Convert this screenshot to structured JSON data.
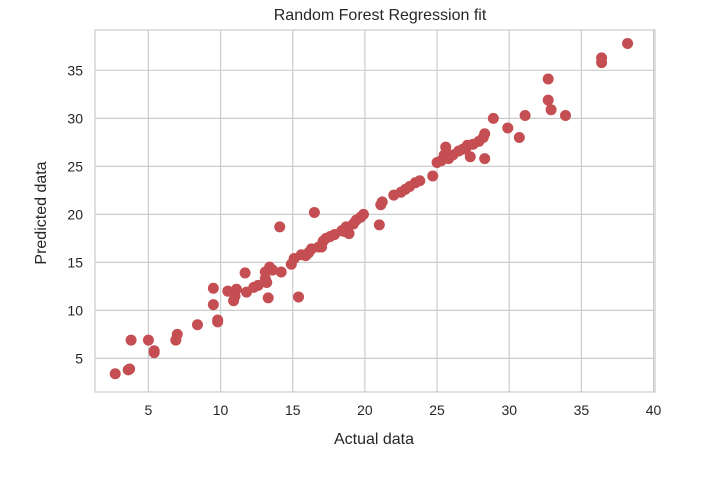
{
  "chart_data": {
    "type": "scatter",
    "title": "Random Forest Regression fit",
    "xlabel": "Actual data",
    "ylabel": "Predicted data",
    "xlim": [
      1.3,
      40.1
    ],
    "ylim": [
      1.5,
      39.2
    ],
    "x_ticks": [
      5,
      10,
      15,
      20,
      25,
      30,
      35,
      40
    ],
    "y_ticks": [
      5,
      10,
      15,
      20,
      25,
      30,
      35
    ],
    "grid": true,
    "point_color": "#c44e52",
    "grid_color": "#cccccc",
    "points": [
      [
        2.7,
        3.4
      ],
      [
        3.6,
        3.8
      ],
      [
        3.7,
        3.9
      ],
      [
        3.8,
        6.9
      ],
      [
        5.0,
        6.9
      ],
      [
        5.4,
        5.8
      ],
      [
        5.4,
        5.6
      ],
      [
        6.9,
        6.9
      ],
      [
        7.0,
        7.5
      ],
      [
        8.4,
        8.5
      ],
      [
        9.5,
        12.3
      ],
      [
        9.5,
        10.6
      ],
      [
        9.8,
        8.8
      ],
      [
        9.8,
        9.0
      ],
      [
        10.5,
        12.0
      ],
      [
        10.9,
        11.0
      ],
      [
        11.0,
        11.5
      ],
      [
        11.1,
        12.2
      ],
      [
        11.7,
        13.9
      ],
      [
        11.8,
        11.9
      ],
      [
        12.3,
        12.4
      ],
      [
        12.6,
        12.6
      ],
      [
        13.1,
        13.3
      ],
      [
        13.1,
        14.0
      ],
      [
        13.2,
        12.9
      ],
      [
        13.3,
        11.3
      ],
      [
        13.4,
        14.5
      ],
      [
        13.6,
        14.2
      ],
      [
        14.1,
        18.7
      ],
      [
        14.2,
        14.0
      ],
      [
        14.9,
        14.8
      ],
      [
        15.1,
        15.4
      ],
      [
        15.4,
        11.4
      ],
      [
        15.6,
        15.8
      ],
      [
        15.9,
        15.7
      ],
      [
        16.1,
        16.0
      ],
      [
        16.3,
        16.4
      ],
      [
        16.5,
        20.2
      ],
      [
        16.8,
        16.6
      ],
      [
        17.0,
        16.6
      ],
      [
        17.1,
        17.2
      ],
      [
        17.3,
        17.5
      ],
      [
        17.6,
        17.7
      ],
      [
        17.9,
        17.9
      ],
      [
        18.4,
        18.3
      ],
      [
        18.6,
        18.2
      ],
      [
        18.7,
        18.7
      ],
      [
        18.9,
        18.0
      ],
      [
        19.2,
        19.0
      ],
      [
        19.4,
        19.4
      ],
      [
        19.7,
        19.7
      ],
      [
        19.9,
        20.0
      ],
      [
        21.0,
        18.9
      ],
      [
        21.1,
        21.0
      ],
      [
        21.2,
        21.3
      ],
      [
        22.0,
        22.0
      ],
      [
        22.5,
        22.3
      ],
      [
        22.8,
        22.6
      ],
      [
        23.1,
        22.9
      ],
      [
        23.5,
        23.3
      ],
      [
        23.8,
        23.5
      ],
      [
        24.7,
        24.0
      ],
      [
        25.0,
        25.4
      ],
      [
        25.3,
        25.6
      ],
      [
        25.5,
        26.2
      ],
      [
        25.6,
        27.0
      ],
      [
        25.8,
        25.8
      ],
      [
        26.1,
        26.2
      ],
      [
        26.5,
        26.6
      ],
      [
        26.8,
        26.8
      ],
      [
        27.0,
        26.9
      ],
      [
        27.1,
        27.2
      ],
      [
        27.3,
        26.0
      ],
      [
        27.5,
        27.3
      ],
      [
        27.9,
        27.6
      ],
      [
        28.2,
        28.0
      ],
      [
        28.3,
        28.4
      ],
      [
        28.3,
        25.8
      ],
      [
        28.9,
        30.0
      ],
      [
        29.9,
        29.0
      ],
      [
        30.7,
        28.0
      ],
      [
        31.1,
        30.3
      ],
      [
        32.7,
        31.9
      ],
      [
        32.7,
        34.1
      ],
      [
        32.9,
        30.9
      ],
      [
        33.9,
        30.3
      ],
      [
        36.4,
        35.8
      ],
      [
        36.4,
        36.3
      ],
      [
        38.2,
        37.8
      ]
    ]
  }
}
